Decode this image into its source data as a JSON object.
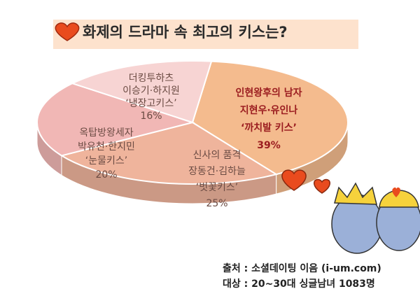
{
  "chart_data": {
    "type": "pie3d",
    "title": "화제의 드라마 속 최고의 키스는?",
    "categories": [
      [
        "인현왕후의 남자",
        "지현우·유인나",
        "‘까치발 키스’"
      ],
      [
        "신사의 품격",
        "장동건·김하늘",
        "‘벗꽃키스’"
      ],
      [
        "옥탑방왕세자",
        "박유천·한지민",
        "‘눈물키스’"
      ],
      [
        "더킹투하츠",
        "이승기·하지원",
        "‘냉장고키스’"
      ]
    ],
    "values": [
      39,
      25,
      20,
      16
    ],
    "value_labels": [
      "39%",
      "25%",
      "20%",
      "16%"
    ],
    "colors": [
      "#f4bb8e",
      "#efb49c",
      "#f1b7b5",
      "#f7d4d3"
    ],
    "label_colors": [
      "#9b1d20",
      "#6b4b43",
      "#6b4b43",
      "#6b4b43"
    ],
    "notes": [
      "출처 : 소셜데이팅 이음 (i-um.com)",
      "대상 : 20~30대 싱글남녀 1083명"
    ]
  }
}
